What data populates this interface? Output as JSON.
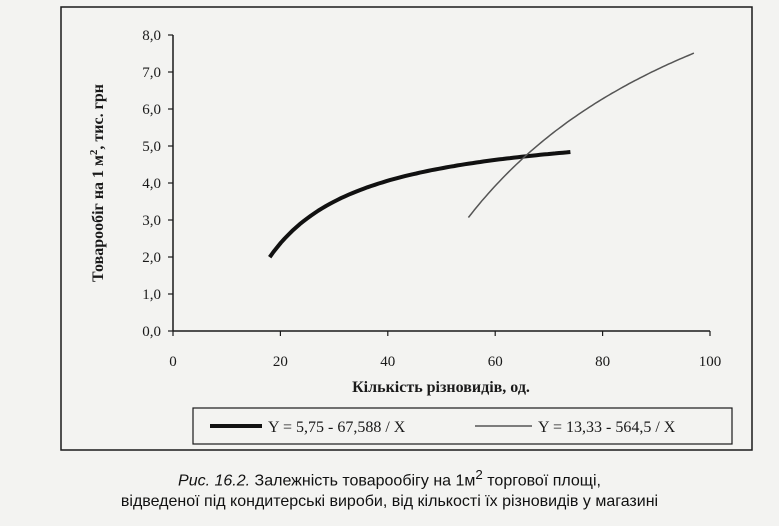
{
  "chart_data": {
    "type": "line",
    "xlabel": "Кількість різновидів, од.",
    "ylabel": "Товарообіг на 1 м², тис. грн",
    "ylabel_main": "Товарообіг на 1 м",
    "ylabel_sup": "2",
    "ylabel_rest": ", тис. грн",
    "xlim": [
      0,
      100
    ],
    "ylim": [
      0,
      8
    ],
    "x_ticks": [
      "0",
      "20",
      "40",
      "60",
      "80",
      "100"
    ],
    "y_ticks": [
      "0,0",
      "1,0",
      "2,0",
      "3,0",
      "4,0",
      "5,0",
      "6,0",
      "7,0",
      "8,0"
    ],
    "grid": false,
    "legend_position": "bottom",
    "series": [
      {
        "name": "Y = 5,75 - 67,588 / X",
        "formula": {
          "a": 5.75,
          "b": 67.588
        },
        "x_range": [
          18,
          74
        ],
        "color": "#111111"
      },
      {
        "name": "Y = 13,33 - 564,5 / X",
        "formula": {
          "a": 13.33,
          "b": 564.5
        },
        "x_range": [
          55,
          97
        ],
        "color": "#555555"
      }
    ]
  },
  "caption": {
    "label": "Рис. 16.2.",
    "line1": " Залежність товарообігу на 1м",
    "sup": "2",
    "line1_end": " торгової площі,",
    "line2": "відведеної під кондитерські вироби, від кількості їх різновидів у магазині"
  }
}
